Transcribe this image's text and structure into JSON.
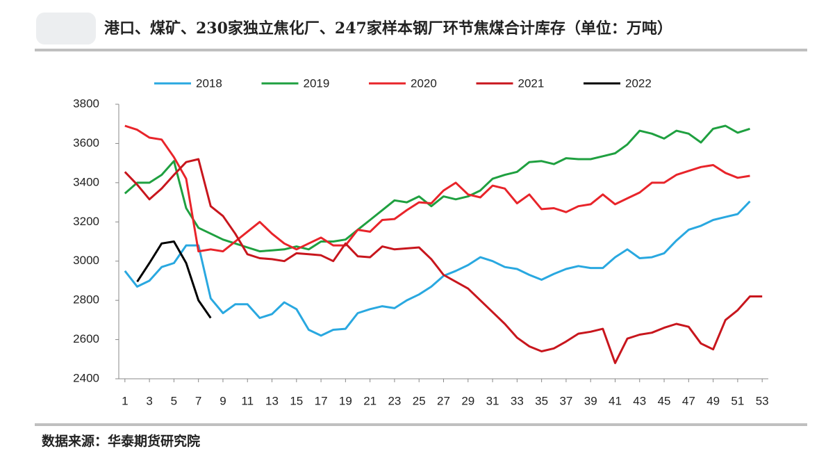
{
  "chart_data": {
    "type": "line",
    "title": "港口、煤矿、230家独立焦化厂、247家样本钢厂环节焦煤合计库存（单位：万吨）",
    "source": "数据来源：华泰期货研究院",
    "x": [
      1,
      2,
      3,
      4,
      5,
      6,
      7,
      8,
      9,
      10,
      11,
      12,
      13,
      14,
      15,
      16,
      17,
      18,
      19,
      20,
      21,
      22,
      23,
      24,
      25,
      26,
      27,
      28,
      29,
      30,
      31,
      32,
      33,
      34,
      35,
      36,
      37,
      38,
      39,
      40,
      41,
      42,
      43,
      44,
      45,
      46,
      47,
      48,
      49,
      50,
      51,
      52,
      53
    ],
    "xlim": [
      0.5,
      53.5
    ],
    "xticks": [
      1,
      3,
      5,
      7,
      9,
      11,
      13,
      15,
      17,
      19,
      21,
      23,
      25,
      27,
      29,
      31,
      33,
      35,
      37,
      39,
      41,
      43,
      45,
      47,
      49,
      51,
      53
    ],
    "ylim": [
      2400,
      3800
    ],
    "yticks": [
      2400,
      2600,
      2800,
      3000,
      3200,
      3400,
      3600,
      3800
    ],
    "legend": "top",
    "series": [
      {
        "name": "2018",
        "color": "#29a8e0",
        "values": [
          2950,
          2870,
          2900,
          2970,
          2990,
          3080,
          3080,
          2810,
          2735,
          2780,
          2780,
          2710,
          2730,
          2790,
          2755,
          2650,
          2620,
          2650,
          2655,
          2735,
          2755,
          2770,
          2760,
          2800,
          2830,
          2870,
          2925,
          2950,
          2980,
          3020,
          3000,
          2970,
          2960,
          2930,
          2905,
          2935,
          2960,
          2975,
          2965,
          2965,
          3020,
          3060,
          3015,
          3020,
          3040,
          3105,
          3160,
          3180,
          3210,
          3225,
          3240,
          3305,
          null
        ]
      },
      {
        "name": "2019",
        "color": "#1fa040",
        "values": [
          3345,
          3400,
          3400,
          3440,
          3510,
          3270,
          3170,
          3140,
          3110,
          3090,
          3070,
          3050,
          3055,
          3060,
          3075,
          3060,
          3100,
          3100,
          3110,
          3160,
          3210,
          3260,
          3310,
          3300,
          3330,
          3280,
          3330,
          3315,
          3330,
          3360,
          3420,
          3440,
          3455,
          3505,
          3510,
          3495,
          3525,
          3520,
          3520,
          3535,
          3550,
          3595,
          3665,
          3650,
          3625,
          3665,
          3650,
          3605,
          3675,
          3690,
          3655,
          3675,
          null
        ]
      },
      {
        "name": "2020",
        "color": "#e8242a",
        "values": [
          3690,
          3670,
          3630,
          3620,
          3530,
          3420,
          3050,
          3060,
          3050,
          3100,
          3150,
          3200,
          3140,
          3090,
          3060,
          3090,
          3120,
          3080,
          3080,
          3160,
          3150,
          3210,
          3215,
          3260,
          3300,
          3295,
          3360,
          3400,
          3340,
          3325,
          3385,
          3370,
          3295,
          3340,
          3265,
          3270,
          3250,
          3280,
          3290,
          3340,
          3290,
          3320,
          3350,
          3400,
          3400,
          3440,
          3460,
          3480,
          3490,
          3450,
          3425,
          3435,
          null
        ]
      },
      {
        "name": "2021",
        "color": "#c8161d",
        "values": [
          3455,
          3390,
          3315,
          3370,
          3440,
          3505,
          3520,
          3280,
          3230,
          3140,
          3035,
          3015,
          3010,
          3000,
          3040,
          3035,
          3030,
          3000,
          3090,
          3025,
          3020,
          3075,
          3060,
          3065,
          3070,
          3010,
          2930,
          2895,
          2860,
          2800,
          2740,
          2680,
          2610,
          2565,
          2540,
          2555,
          2590,
          2630,
          2640,
          2655,
          2480,
          2605,
          2625,
          2635,
          2660,
          2680,
          2665,
          2580,
          2550,
          2700,
          2750,
          2820,
          2820
        ]
      },
      {
        "name": "2022",
        "color": "#000000",
        "values": [
          null,
          2895,
          2990,
          3090,
          3100,
          2990,
          2800,
          2710,
          null,
          null,
          null,
          null,
          null,
          null,
          null,
          null,
          null,
          null,
          null,
          null,
          null,
          null,
          null,
          null,
          null,
          null,
          null,
          null,
          null,
          null,
          null,
          null,
          null,
          null,
          null,
          null,
          null,
          null,
          null,
          null,
          null,
          null,
          null,
          null,
          null,
          null,
          null,
          null,
          null,
          null,
          null,
          null,
          null
        ]
      }
    ]
  }
}
